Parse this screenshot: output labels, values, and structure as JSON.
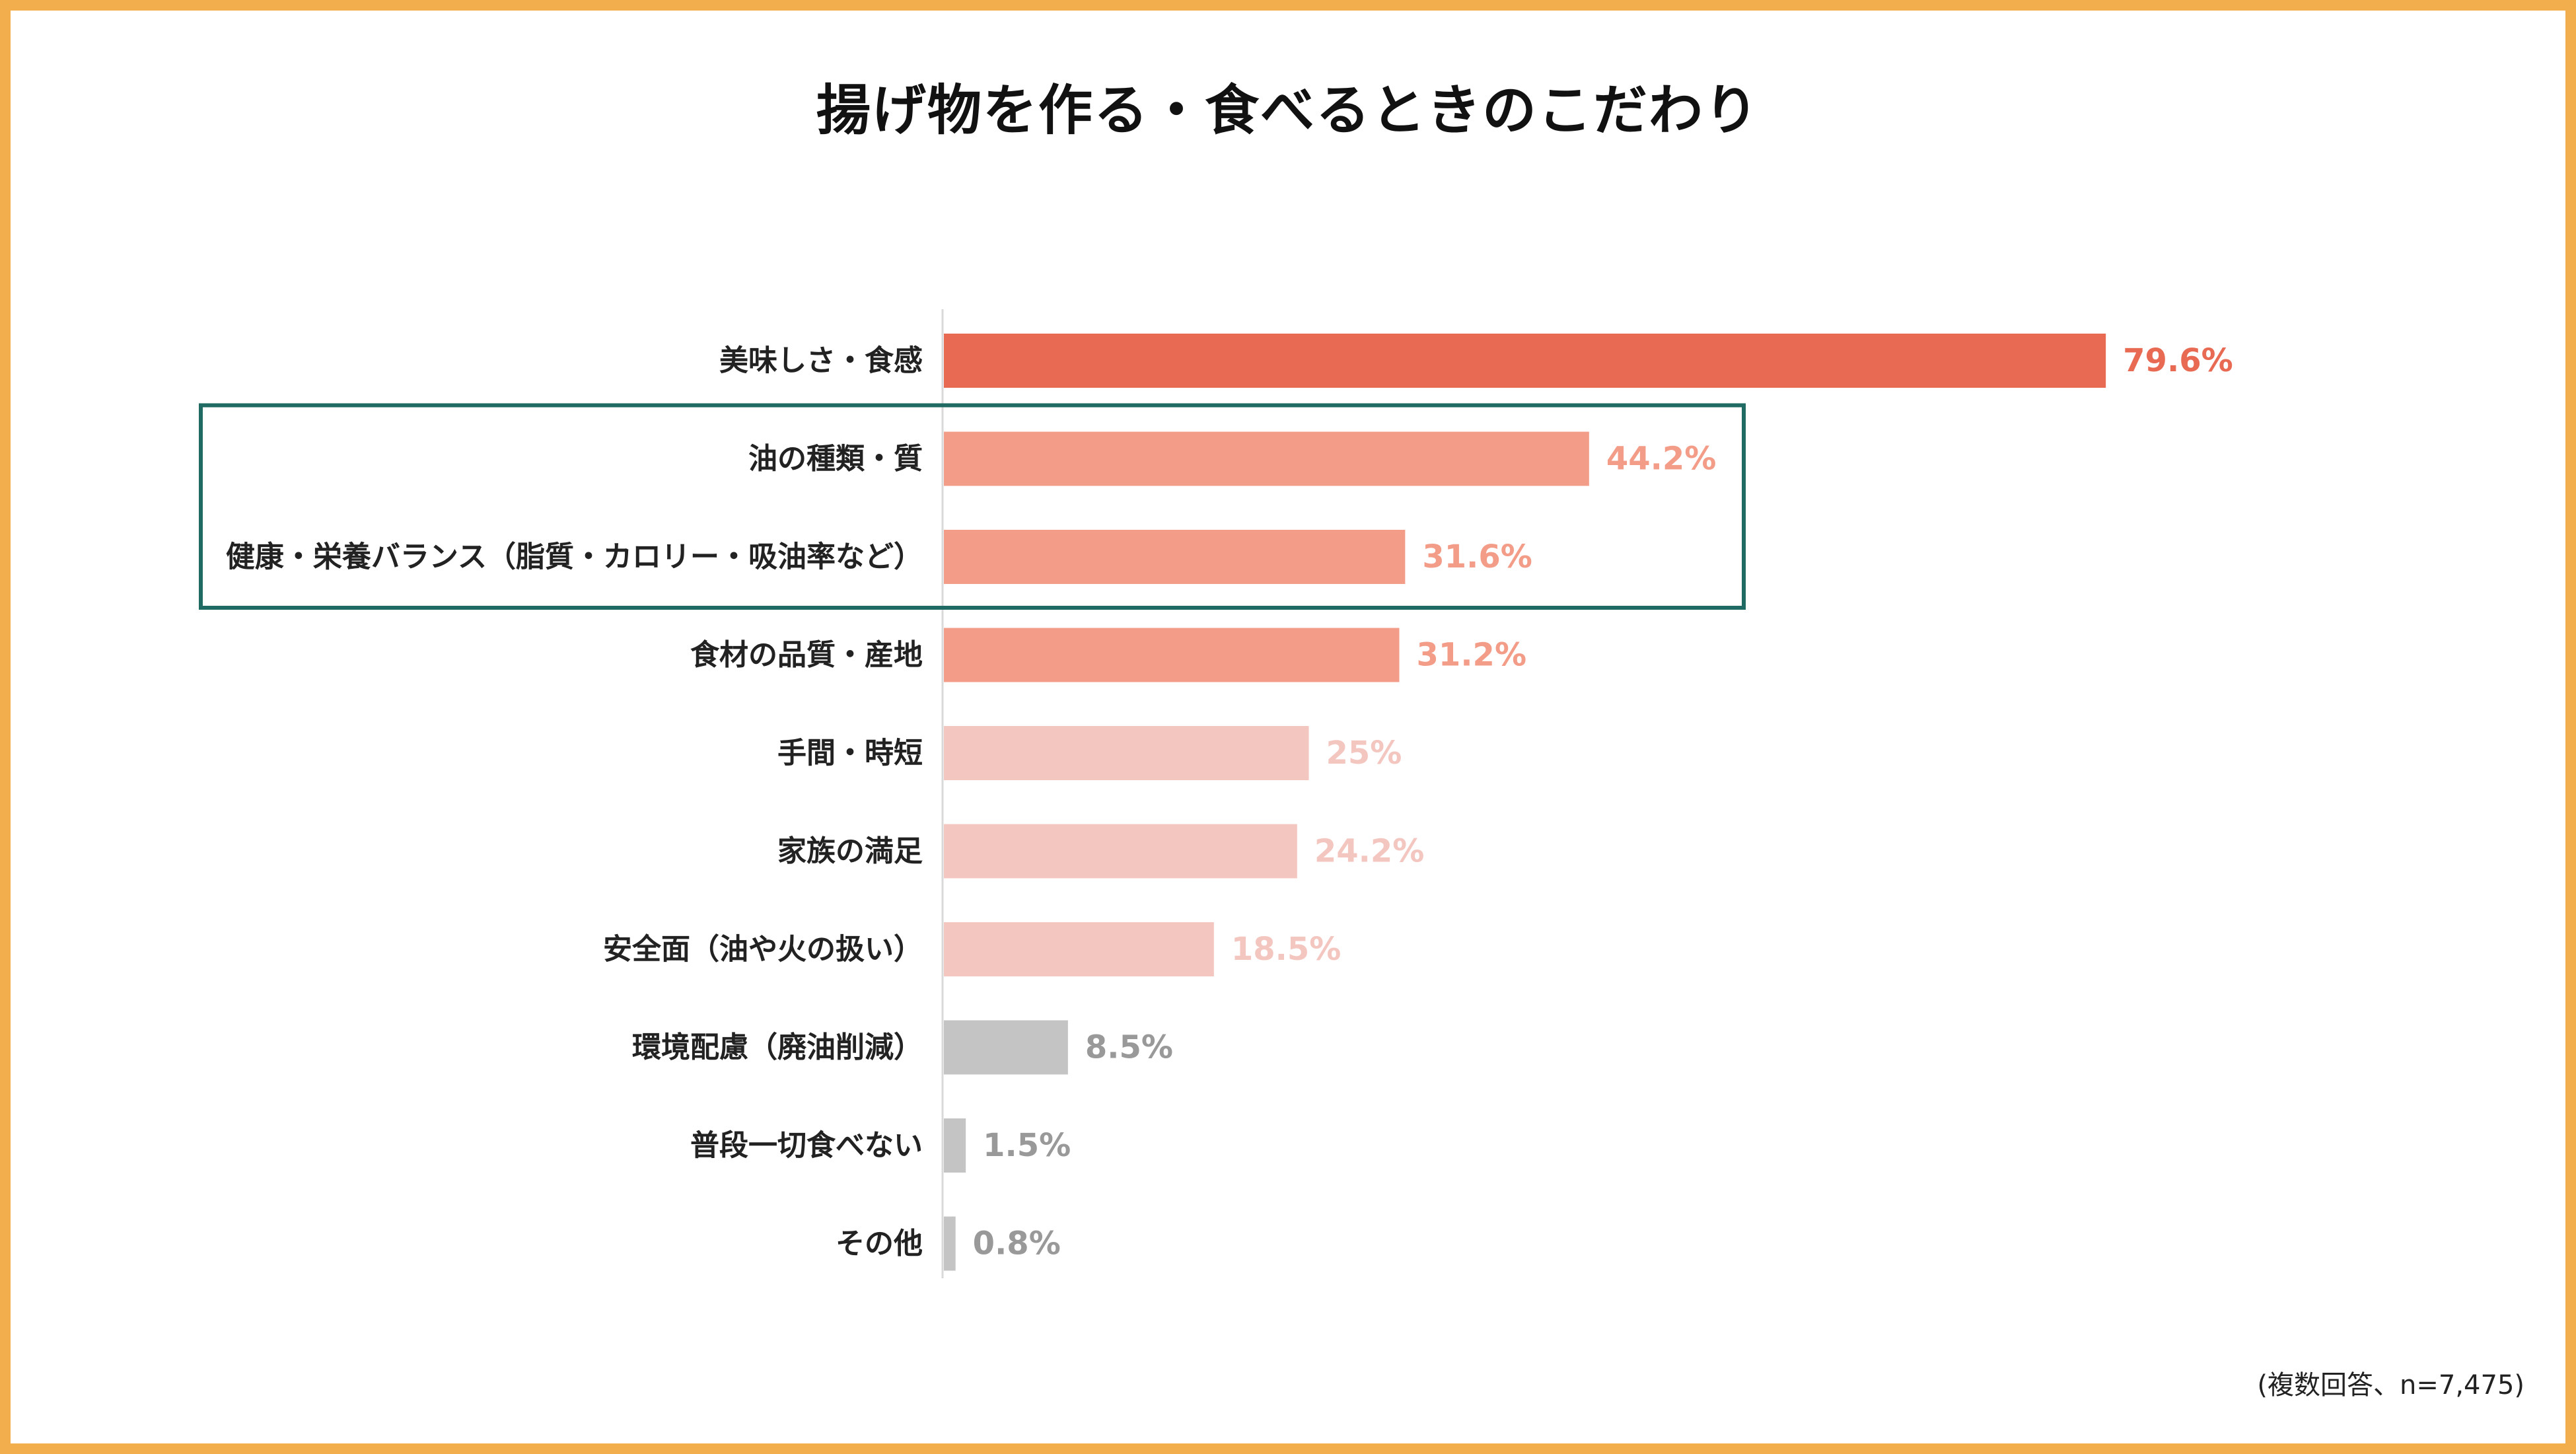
{
  "chart_data": {
    "type": "bar",
    "orientation": "horizontal",
    "title": "揚げ物を作る・食べるときのこだわり",
    "note": "(複数回答、n=7,475)",
    "xlim": [
      0,
      100
    ],
    "grid": false,
    "categories": [
      "美味しさ・食感",
      "油の種類・質",
      "健康・栄養バランス（脂質・カロリー・吸油率など）",
      "食材の品質・産地",
      "手間・時短",
      "家族の満足",
      "安全面（油や火の扱い）",
      "環境配慮（廃油削減）",
      "普段一切食べない",
      "その他"
    ],
    "values": [
      79.6,
      44.2,
      31.6,
      31.2,
      25,
      24.2,
      18.5,
      8.5,
      1.5,
      0.8
    ],
    "value_labels": [
      "79.6%",
      "44.2%",
      "31.6%",
      "31.2%",
      "25%",
      "24.2%",
      "18.5%",
      "8.5%",
      "1.5%",
      "0.8%"
    ],
    "bar_colors": [
      "#e86a53",
      "#f39c88",
      "#f39c88",
      "#f39c88",
      "#f4c6c0",
      "#f4c6c0",
      "#f4c6c0",
      "#c4c4c4",
      "#c4c4c4",
      "#c4c4c4"
    ],
    "label_colors": [
      "#e86a53",
      "#f39c88",
      "#f39c88",
      "#f39c88",
      "#f4c6c0",
      "#f4c6c0",
      "#f4c6c0",
      "#999999",
      "#999999",
      "#999999"
    ],
    "highlight": {
      "categories": [
        1,
        2
      ],
      "color": "#1f6b63"
    }
  },
  "colors": {
    "border": "#f2ad4d"
  }
}
